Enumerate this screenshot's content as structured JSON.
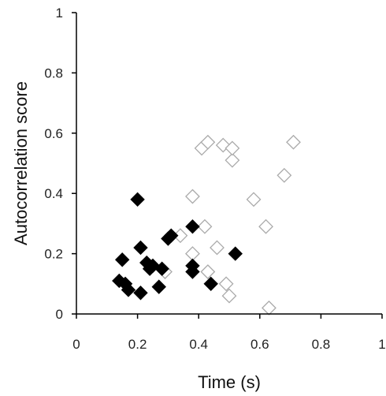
{
  "chart_data": {
    "type": "scatter",
    "title": "",
    "xlabel": "Time (s)",
    "ylabel": "Autocorrelation score",
    "xlim": [
      0,
      1
    ],
    "ylim": [
      0,
      1
    ],
    "x_ticks": [
      "0",
      "0.2",
      "0.4",
      "0.6",
      "0.8",
      "1"
    ],
    "y_ticks": [
      "0",
      "0.2",
      "0.4",
      "0.6",
      "0.8",
      "1"
    ],
    "grid": false,
    "legend": "none",
    "series": [
      {
        "marker": "filled-diamond",
        "color": "#000000",
        "points": [
          {
            "x": 0.14,
            "y": 0.11
          },
          {
            "x": 0.15,
            "y": 0.18
          },
          {
            "x": 0.16,
            "y": 0.1
          },
          {
            "x": 0.17,
            "y": 0.08
          },
          {
            "x": 0.2,
            "y": 0.38
          },
          {
            "x": 0.21,
            "y": 0.22
          },
          {
            "x": 0.21,
            "y": 0.07
          },
          {
            "x": 0.23,
            "y": 0.17
          },
          {
            "x": 0.24,
            "y": 0.15
          },
          {
            "x": 0.25,
            "y": 0.16
          },
          {
            "x": 0.27,
            "y": 0.09
          },
          {
            "x": 0.28,
            "y": 0.15
          },
          {
            "x": 0.3,
            "y": 0.25
          },
          {
            "x": 0.31,
            "y": 0.26
          },
          {
            "x": 0.38,
            "y": 0.29
          },
          {
            "x": 0.38,
            "y": 0.16
          },
          {
            "x": 0.38,
            "y": 0.14
          },
          {
            "x": 0.44,
            "y": 0.1
          },
          {
            "x": 0.52,
            "y": 0.2
          }
        ]
      },
      {
        "marker": "open-diamond",
        "color": "#aaaaaa",
        "points": [
          {
            "x": 0.29,
            "y": 0.14
          },
          {
            "x": 0.34,
            "y": 0.26
          },
          {
            "x": 0.38,
            "y": 0.39
          },
          {
            "x": 0.38,
            "y": 0.2
          },
          {
            "x": 0.41,
            "y": 0.55
          },
          {
            "x": 0.42,
            "y": 0.29
          },
          {
            "x": 0.43,
            "y": 0.57
          },
          {
            "x": 0.43,
            "y": 0.14
          },
          {
            "x": 0.46,
            "y": 0.22
          },
          {
            "x": 0.48,
            "y": 0.56
          },
          {
            "x": 0.49,
            "y": 0.1
          },
          {
            "x": 0.5,
            "y": 0.06
          },
          {
            "x": 0.51,
            "y": 0.51
          },
          {
            "x": 0.51,
            "y": 0.55
          },
          {
            "x": 0.58,
            "y": 0.38
          },
          {
            "x": 0.62,
            "y": 0.29
          },
          {
            "x": 0.63,
            "y": 0.02
          },
          {
            "x": 0.68,
            "y": 0.46
          },
          {
            "x": 0.71,
            "y": 0.57
          }
        ]
      }
    ]
  }
}
